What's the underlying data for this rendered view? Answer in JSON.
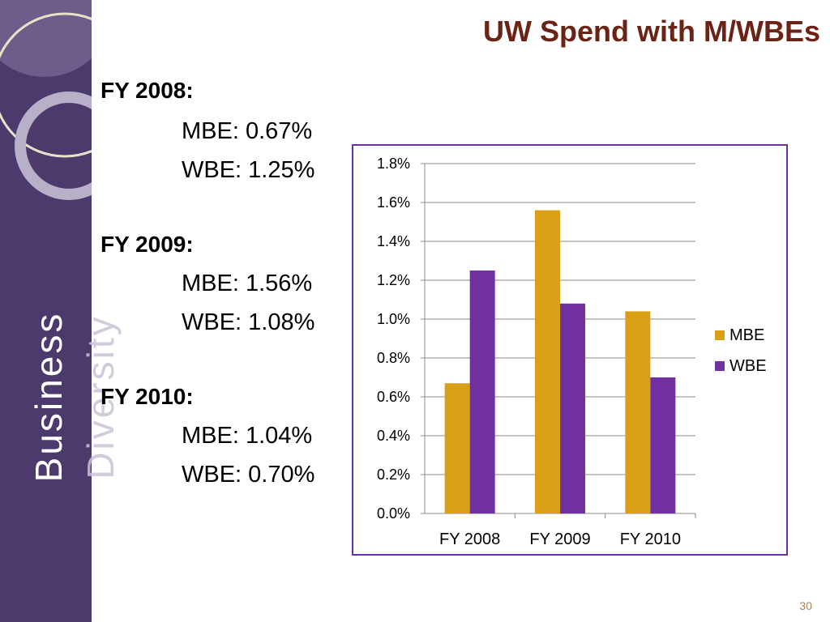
{
  "slide": {
    "title": "UW Spend with M/WBEs",
    "sidebar_text_1": "Business",
    "sidebar_text_2": "Diversity",
    "page_number": "30",
    "colors": {
      "sidebar": "#4b3a6b",
      "title": "#6b2316",
      "mbe": "#daa015",
      "wbe": "#7030a0",
      "chart_border": "#6a2fa0"
    }
  },
  "stats": [
    {
      "year": "FY 2008:",
      "mbe": "MBE: 0.67%",
      "wbe": "WBE: 1.25%"
    },
    {
      "year": "FY 2009:",
      "mbe": "MBE: 1.56%",
      "wbe": "WBE: 1.08%"
    },
    {
      "year": "FY 2010:",
      "mbe": "MBE: 1.04%",
      "wbe": "WBE: 0.70%"
    }
  ],
  "chart_data": {
    "type": "bar",
    "categories": [
      "FY 2008",
      "FY 2009",
      "FY 2010"
    ],
    "series": [
      {
        "name": "MBE",
        "values": [
          0.67,
          1.56,
          1.04
        ],
        "color": "#daa015"
      },
      {
        "name": "WBE",
        "values": [
          1.25,
          1.08,
          0.7
        ],
        "color": "#7030a0"
      }
    ],
    "ylim": [
      0,
      1.8
    ],
    "yticks": [
      "0.0%",
      "0.2%",
      "0.4%",
      "0.6%",
      "0.8%",
      "1.0%",
      "1.2%",
      "1.4%",
      "1.6%",
      "1.8%"
    ],
    "legend": "right",
    "grid": true
  }
}
